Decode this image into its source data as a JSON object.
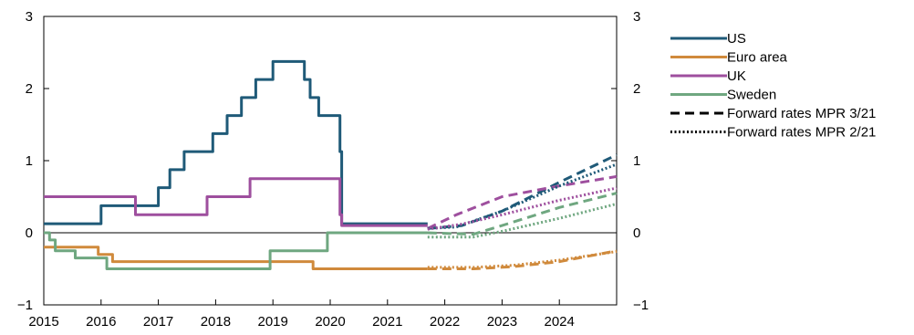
{
  "chart_data": {
    "type": "line",
    "title": "",
    "xlabel": "",
    "ylabel": "",
    "xlim": [
      2015,
      2025
    ],
    "ylim": [
      -1,
      3
    ],
    "x_ticks": [
      "2015",
      "2016",
      "2017",
      "2018",
      "2019",
      "2020",
      "2021",
      "2022",
      "2023",
      "2024"
    ],
    "y_ticks_left": [
      "3",
      "2",
      "1",
      "0",
      "−1"
    ],
    "y_ticks_right": [
      "3",
      "2",
      "1",
      "0",
      "−1"
    ],
    "legend_position": "right",
    "series": [
      {
        "name": "US",
        "color": "#1f5a78",
        "style": "solid",
        "step": true,
        "x": [
          2015,
          2016,
          2017,
          2017.2,
          2017.45,
          2017.95,
          2018.2,
          2018.45,
          2018.7,
          2019.0,
          2019.55,
          2019.65,
          2019.8,
          2020.17,
          2020.2,
          2020.22,
          2021.7
        ],
        "y": [
          0.125,
          0.375,
          0.625,
          0.875,
          1.125,
          1.375,
          1.625,
          1.875,
          2.125,
          2.375,
          2.125,
          1.875,
          1.625,
          1.125,
          0.125,
          0.125,
          0.125
        ]
      },
      {
        "name": "Euro area",
        "color": "#d08a3c",
        "style": "solid",
        "step": true,
        "x": [
          2015,
          2015.95,
          2016.2,
          2019.7,
          2021.7
        ],
        "y": [
          -0.2,
          -0.3,
          -0.4,
          -0.5,
          -0.5
        ]
      },
      {
        "name": "UK",
        "color": "#9e4f9e",
        "style": "solid",
        "step": true,
        "x": [
          2015,
          2016.6,
          2017.85,
          2018.6,
          2020.17,
          2020.2,
          2021.7
        ],
        "y": [
          0.5,
          0.25,
          0.5,
          0.75,
          0.25,
          0.1,
          0.1
        ]
      },
      {
        "name": "Sweden",
        "color": "#6fa780",
        "style": "solid",
        "step": true,
        "x": [
          2015,
          2015.1,
          2015.2,
          2015.55,
          2016.1,
          2018.95,
          2019.95,
          2021.7
        ],
        "y": [
          0,
          -0.1,
          -0.25,
          -0.35,
          -0.5,
          -0.25,
          0,
          0
        ]
      },
      {
        "name": "US forward MPR 3/21",
        "color": "#1f5a78",
        "style": "dashed",
        "x": [
          2021.7,
          2022.3,
          2023,
          2024,
          2025
        ],
        "y": [
          0.06,
          0.1,
          0.3,
          0.7,
          1.08
        ]
      },
      {
        "name": "Euro area forward MPR 3/21",
        "color": "#d08a3c",
        "style": "dashed",
        "x": [
          2021.7,
          2022.5,
          2023.2,
          2024,
          2025
        ],
        "y": [
          -0.5,
          -0.5,
          -0.47,
          -0.4,
          -0.25
        ]
      },
      {
        "name": "UK forward MPR 3/21",
        "color": "#9e4f9e",
        "style": "dashed",
        "x": [
          2021.7,
          2022.2,
          2023,
          2024,
          2025
        ],
        "y": [
          0.06,
          0.25,
          0.5,
          0.65,
          0.78
        ]
      },
      {
        "name": "Sweden forward MPR 3/21",
        "color": "#6fa780",
        "style": "dashed",
        "x": [
          2021.7,
          2022.5,
          2023,
          2024,
          2025
        ],
        "y": [
          0,
          -0.02,
          0.1,
          0.35,
          0.55
        ]
      },
      {
        "name": "US forward MPR 2/21",
        "color": "#1f5a78",
        "style": "dotted",
        "x": [
          2021.7,
          2022.2,
          2023,
          2024,
          2025
        ],
        "y": [
          0.06,
          0.08,
          0.3,
          0.65,
          0.95
        ]
      },
      {
        "name": "Euro area forward MPR 2/21",
        "color": "#d08a3c",
        "style": "dotted",
        "x": [
          2021.7,
          2022.5,
          2023.2,
          2024,
          2025
        ],
        "y": [
          -0.48,
          -0.48,
          -0.45,
          -0.38,
          -0.26
        ]
      },
      {
        "name": "UK forward MPR 2/21",
        "color": "#9e4f9e",
        "style": "dotted",
        "x": [
          2021.7,
          2022.3,
          2023,
          2024,
          2025
        ],
        "y": [
          0.05,
          0.12,
          0.25,
          0.45,
          0.62
        ]
      },
      {
        "name": "Sweden forward MPR 2/21",
        "color": "#6fa780",
        "style": "dotted",
        "x": [
          2021.7,
          2022.5,
          2023,
          2024,
          2025
        ],
        "y": [
          -0.06,
          -0.06,
          0.02,
          0.2,
          0.4
        ]
      }
    ],
    "legend": [
      {
        "label": "US",
        "color": "#1f5a78",
        "style": "solid"
      },
      {
        "label": "Euro area",
        "color": "#d08a3c",
        "style": "solid"
      },
      {
        "label": "UK",
        "color": "#9e4f9e",
        "style": "solid"
      },
      {
        "label": "Sweden",
        "color": "#6fa780",
        "style": "solid"
      },
      {
        "label": "Forward rates MPR 3/21",
        "color": "#000000",
        "style": "dashed"
      },
      {
        "label": "Forward rates MPR 2/21",
        "color": "#000000",
        "style": "dotted"
      }
    ]
  }
}
